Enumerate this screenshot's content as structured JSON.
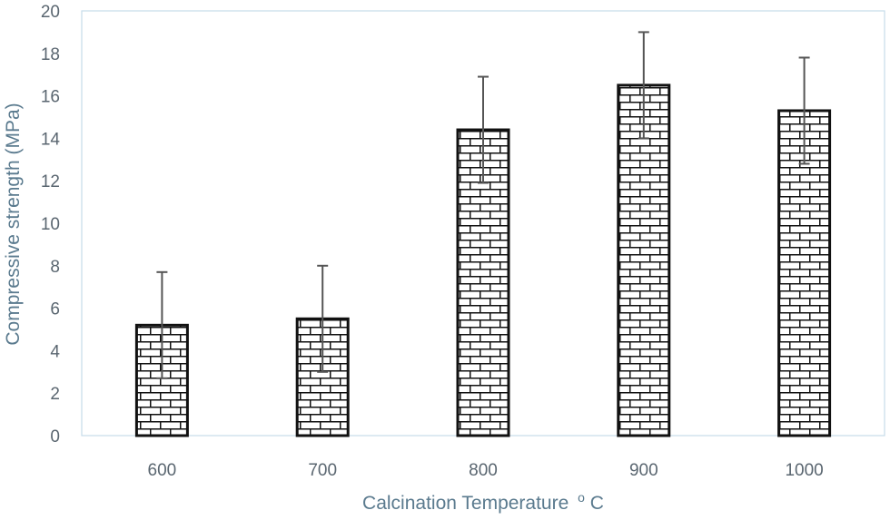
{
  "chart_data": {
    "type": "bar",
    "title": "",
    "xlabel": "Calcination Temperature",
    "xlabel_superscript": "o",
    "xlabel_suffix": "C",
    "ylabel": "Compressive strength (MPa)",
    "categories": [
      "600",
      "700",
      "800",
      "900",
      "1000"
    ],
    "values": [
      5.2,
      5.5,
      14.4,
      16.5,
      15.3
    ],
    "error": [
      2.5,
      2.5,
      2.5,
      2.5,
      2.5
    ],
    "ylim": [
      0,
      20
    ],
    "yticks": [
      0,
      2,
      4,
      6,
      8,
      10,
      12,
      14,
      16,
      18,
      20
    ],
    "grid": false,
    "legend": "none",
    "bar_pattern": "brick",
    "colors": {
      "bar_outline": "#111111",
      "bar_fill": "#ffffff",
      "error_bar": "#555555",
      "axis_frame": "#c6dbea",
      "tick_text": "#5a6670",
      "axis_title": "#5a7a8e"
    }
  }
}
